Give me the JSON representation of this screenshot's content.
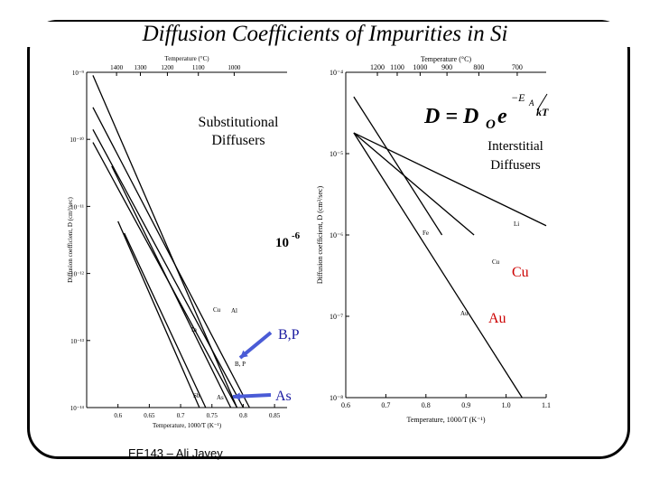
{
  "slide": {
    "title": "Diffusion Coefficients of Impurities in Si",
    "footer": "EE143 – Ali Javey"
  },
  "formula": {
    "lhs": "D = D",
    "sub": "O",
    "e": "e",
    "exponent": "−E",
    "exp_sub": "A",
    "exp_den": "kT"
  },
  "annotations": {
    "substitutional": [
      "Substitutional",
      "Diffusers"
    ],
    "interstitial": [
      "Interstitial",
      "Diffusers"
    ],
    "ten_minus6_base": "10",
    "ten_minus6_exp": "-6",
    "bp_label": "B,P",
    "as_label": "As",
    "cu_label": "Cu",
    "au_label": "Au"
  },
  "colors": {
    "accent_label": "#cc0000",
    "arrow": "#4a5bd6",
    "annotation_blue": "#1a1aa0"
  },
  "chart_data": [
    {
      "type": "line",
      "title": "",
      "top_axis_label": "Temperature (°C)",
      "top_ticks": [
        1400,
        1300,
        1200,
        1100,
        1000
      ],
      "xlabel": "Temperature, 1000/T (K⁻¹)",
      "ylabel": "Diffusion coefficient, D (cm²/sec)",
      "xlim": [
        0.55,
        0.87
      ],
      "ylim": [
        1e-14,
        1e-09
      ],
      "yscale": "log",
      "x_ticks": [
        "0.6",
        "0.65",
        "0.7",
        "0.75",
        "0.8",
        "0.85"
      ],
      "y_ticks": [
        "10⁻⁹",
        "10⁻¹⁰",
        "10⁻¹¹",
        "10⁻¹²",
        "10⁻¹³",
        "10⁻¹⁴"
      ],
      "series": [
        {
          "name": "Cu",
          "points": [
            [
              0.56,
              9e-10
            ],
            [
              0.79,
              1e-14
            ]
          ]
        },
        {
          "name": "Al",
          "points": [
            [
              0.56,
              3e-10
            ],
            [
              0.81,
              1e-14
            ]
          ]
        },
        {
          "name": "Ga",
          "points": [
            [
              0.56,
              1.4e-10
            ],
            [
              0.8,
              1e-14
            ]
          ]
        },
        {
          "name": "In",
          "points": [
            [
              0.56,
              9e-11
            ],
            [
              0.79,
              1e-14
            ]
          ]
        },
        {
          "name": "B,P",
          "points": [
            [
              0.59,
              4e-11
            ],
            [
              0.78,
              1e-14
            ]
          ]
        },
        {
          "name": "Sb",
          "points": [
            [
              0.6,
              6e-12
            ],
            [
              0.73,
              1e-14
            ]
          ]
        },
        {
          "name": "As",
          "points": [
            [
              0.61,
              4e-12
            ],
            [
              0.74,
              1e-14
            ]
          ]
        }
      ],
      "point_labels": [
        "Cu",
        "Al",
        "In",
        "B, P",
        "Sb",
        "As"
      ]
    },
    {
      "type": "line",
      "title": "",
      "top_axis_label": "Temperature (°C)",
      "top_ticks": [
        1200,
        1100,
        1000,
        900,
        800,
        700
      ],
      "xlabel": "Temperature, 1000/T (K⁻¹)",
      "ylabel": "Diffusion coefficient, D (cm²/sec)",
      "xlim": [
        0.6,
        1.1
      ],
      "ylim": [
        1e-08,
        0.0001
      ],
      "yscale": "log",
      "x_ticks": [
        "0.6",
        "0.7",
        "0.8",
        "0.9",
        "1.0",
        "1.1"
      ],
      "y_ticks": [
        "10⁻⁴",
        "10⁻⁵",
        "10⁻⁶",
        "10⁻⁷",
        "10⁻⁸"
      ],
      "series": [
        {
          "name": "Li",
          "points": [
            [
              0.62,
              1.8e-05
            ],
            [
              1.1,
              1.3e-06
            ]
          ]
        },
        {
          "name": "Fe",
          "points": [
            [
              0.62,
              5e-05
            ],
            [
              0.84,
              1e-06
            ]
          ]
        },
        {
          "name": "Cu",
          "points": [
            [
              0.62,
              1.8e-05
            ],
            [
              0.92,
              1e-06
            ]
          ]
        },
        {
          "name": "Au",
          "points": [
            [
              0.62,
              1.8e-05
            ],
            [
              1.04,
              1e-08
            ]
          ]
        }
      ],
      "point_labels": [
        "Li",
        "Fe",
        "Cu",
        "Au"
      ]
    }
  ]
}
